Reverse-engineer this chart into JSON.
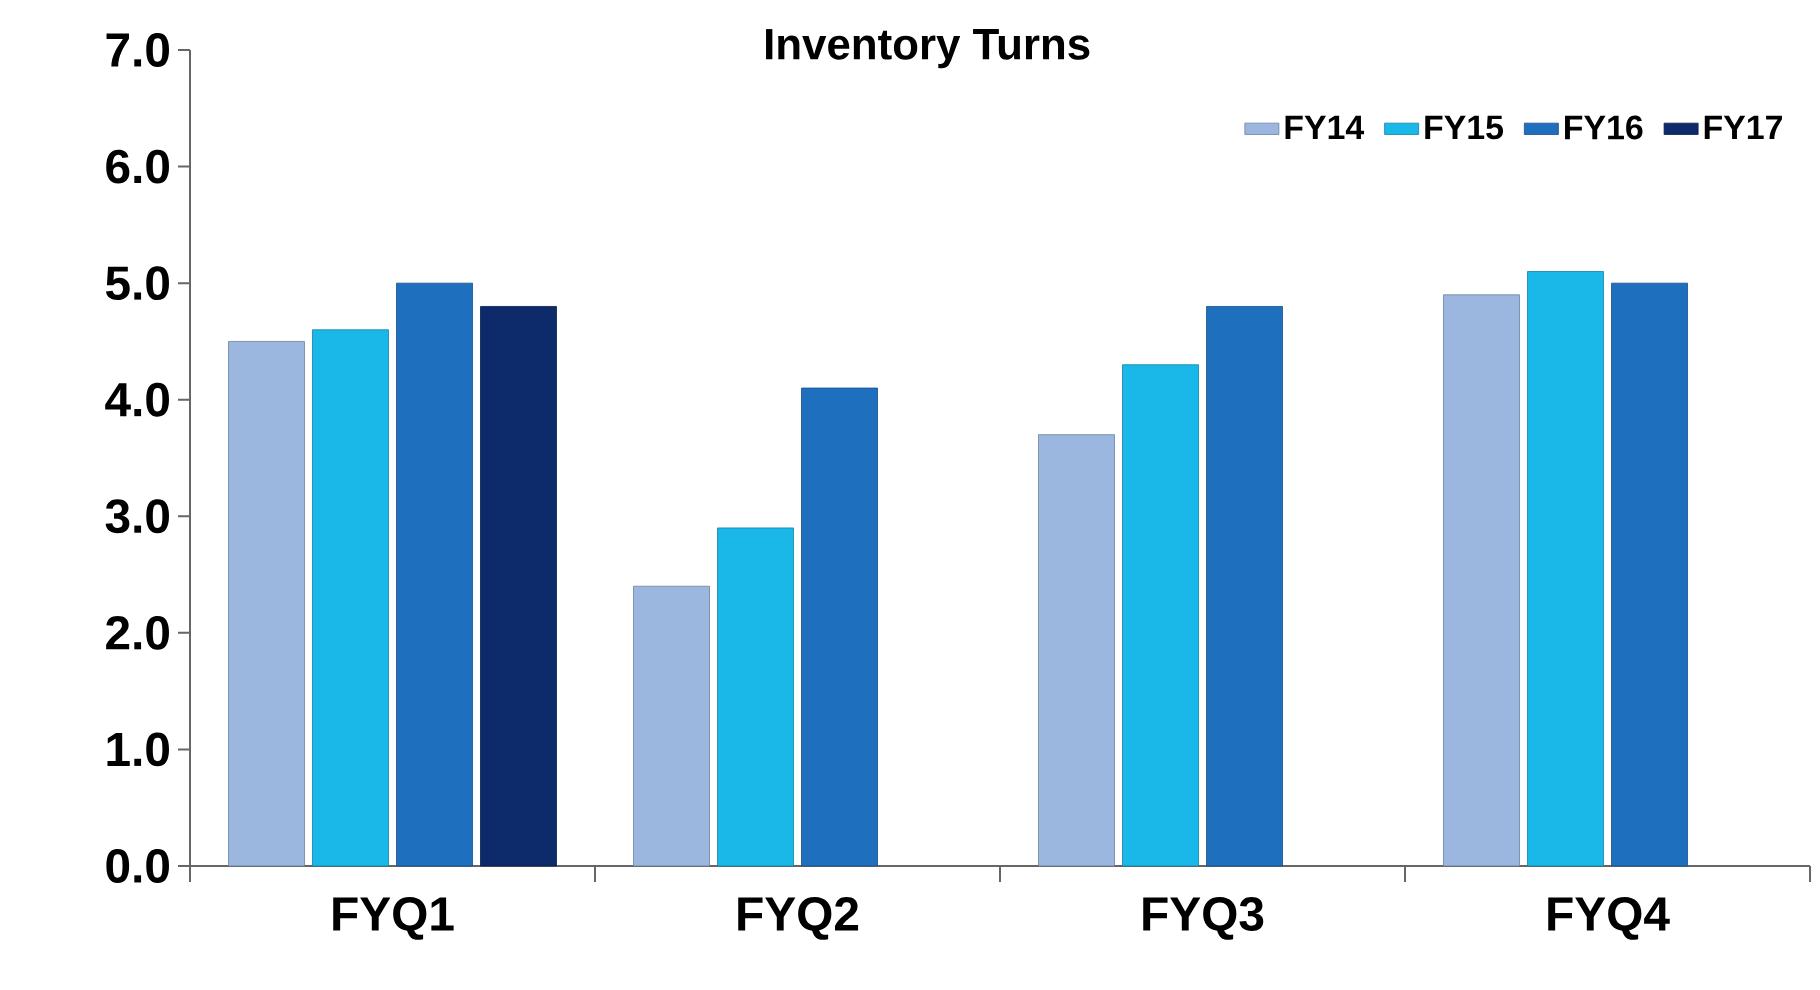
{
  "chart_data": {
    "type": "bar",
    "title": "Inventory Turns",
    "categories": [
      "FYQ1",
      "FYQ2",
      "FYQ3",
      "FYQ4"
    ],
    "series": [
      {
        "name": "FY14",
        "color": "#9bb7e0",
        "values": [
          4.5,
          2.4,
          3.7,
          4.9
        ]
      },
      {
        "name": "FY15",
        "color": "#1ab8e8",
        "values": [
          4.6,
          2.9,
          4.3,
          5.1
        ]
      },
      {
        "name": "FY16",
        "color": "#1f6fbf",
        "values": [
          5.0,
          4.1,
          4.8,
          5.0
        ]
      },
      {
        "name": "FY17",
        "color": "#0d2a6b",
        "values": [
          4.8,
          null,
          null,
          null
        ]
      }
    ],
    "ylim": [
      0,
      7
    ],
    "yticks": [
      {
        "value": 0,
        "label": "0.0"
      },
      {
        "value": 1,
        "label": "1.0"
      },
      {
        "value": 2,
        "label": "2.0"
      },
      {
        "value": 3,
        "label": "3.0"
      },
      {
        "value": 4,
        "label": "4.0"
      },
      {
        "value": 5,
        "label": "5.0"
      },
      {
        "value": 6,
        "label": "6.0"
      },
      {
        "value": 7,
        "label": "7.0"
      }
    ],
    "grid": false,
    "legend": "top right"
  }
}
